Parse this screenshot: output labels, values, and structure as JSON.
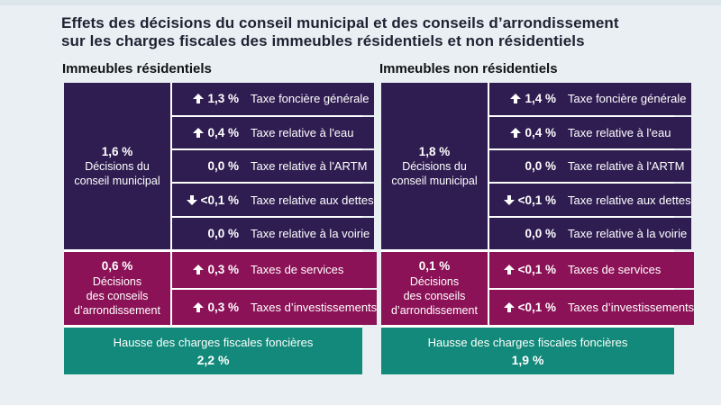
{
  "title": {
    "line1": "Effets des décisions du conseil municipal et des conseils d’arrondissement",
    "line2": "sur les charges fiscales des immeubles résidentiels et non résidentiels"
  },
  "colors": {
    "purple": "#2F1D51",
    "magenta": "#8C1257",
    "green": "#12897A",
    "background": "#E9EFF2",
    "title_text": "#1F2233",
    "row_text": "#FFFFFF"
  },
  "panels": [
    {
      "heading": "Immeubles résidentiels",
      "municipal": {
        "value": "1,6 %",
        "label_line1": "Décisions du",
        "label_line2": "conseil municipal",
        "rows": [
          {
            "dir": "up",
            "value": "1,3 %",
            "label": "Taxe foncière générale"
          },
          {
            "dir": "up",
            "value": "0,4 %",
            "label": "Taxe relative à l'eau"
          },
          {
            "dir": "none",
            "value": "0,0 %",
            "label": "Taxe relative à l'ARTM"
          },
          {
            "dir": "down",
            "value": "<0,1 %",
            "label": "Taxe relative aux dettes"
          },
          {
            "dir": "none",
            "value": "0,0 %",
            "label": "Taxe relative à la voirie"
          }
        ]
      },
      "arrondissement": {
        "value": "0,6 %",
        "label_line1": "Décisions",
        "label_line2": "des conseils",
        "label_line3": "d’arrondissement",
        "rows": [
          {
            "dir": "up",
            "value": "0,3 %",
            "label": "Taxes de services"
          },
          {
            "dir": "up",
            "value": "0,3 %",
            "label": "Taxes d’investissements"
          }
        ]
      },
      "total": {
        "label": "Hausse des charges fiscales foncières",
        "value": "2,2 %"
      }
    },
    {
      "heading": "Immeubles non résidentiels",
      "municipal": {
        "value": "1,8 %",
        "label_line1": "Décisions du",
        "label_line2": "conseil municipal",
        "rows": [
          {
            "dir": "up",
            "value": "1,4 %",
            "label": "Taxe foncière générale"
          },
          {
            "dir": "up",
            "value": "0,4 %",
            "label": "Taxe relative à l'eau"
          },
          {
            "dir": "none",
            "value": "0,0 %",
            "label": "Taxe relative à l'ARTM"
          },
          {
            "dir": "down",
            "value": "<0,1 %",
            "label": "Taxe relative aux dettes"
          },
          {
            "dir": "none",
            "value": "0,0 %",
            "label": "Taxe relative à la voirie"
          }
        ]
      },
      "arrondissement": {
        "value": "0,1 %",
        "label_line1": "Décisions",
        "label_line2": "des conseils",
        "label_line3": "d’arrondissement",
        "rows": [
          {
            "dir": "up",
            "value": "<0,1 %",
            "label": "Taxes de services"
          },
          {
            "dir": "up",
            "value": "<0,1 %",
            "label": "Taxes d’investissements"
          }
        ]
      },
      "total": {
        "label": "Hausse des charges fiscales foncières",
        "value": "1,9 %"
      }
    }
  ],
  "chart_data": {
    "type": "table",
    "title": "Effets des décisions du conseil municipal et des conseils d’arrondissement sur les charges fiscales des immeubles résidentiels et non résidentiels",
    "unit": "%",
    "categories": [
      "Taxe foncière générale",
      "Taxe relative à l'eau",
      "Taxe relative à l'ARTM",
      "Taxe relative aux dettes",
      "Taxe relative à la voirie",
      "Taxes de services",
      "Taxes d’investissements"
    ],
    "series": [
      {
        "name": "Immeubles résidentiels",
        "values_display": [
          "+1,3 %",
          "+0,4 %",
          "0,0 %",
          "-<0,1 %",
          "0,0 %",
          "+0,3 %",
          "+0,3 %"
        ],
        "decisions_conseil_municipal_total": "1,6 %",
        "decisions_conseils_arrondissement_total": "0,6 %",
        "hausse_charges_fiscales_foncieres": "2,2 %"
      },
      {
        "name": "Immeubles non résidentiels",
        "values_display": [
          "+1,4 %",
          "+0,4 %",
          "0,0 %",
          "-<0,1 %",
          "0,0 %",
          "+<0,1 %",
          "+<0,1 %"
        ],
        "decisions_conseil_municipal_total": "1,8 %",
        "decisions_conseils_arrondissement_total": "0,1 %",
        "hausse_charges_fiscales_foncieres": "1,9 %"
      }
    ]
  }
}
